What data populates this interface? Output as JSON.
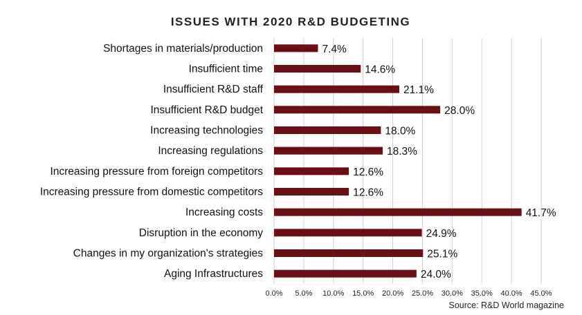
{
  "chart_data": {
    "type": "bar",
    "orientation": "horizontal",
    "title": "ISSUES WITH 2020 R&D BUDGETING",
    "categories": [
      "Shortages in materials/production",
      "Insufficient time",
      "Insufficient R&D staff",
      "Insufficient R&D budget",
      "Increasing technologies",
      "Increasing regulations",
      "Increasing pressure from foreign competitors",
      "Increasing pressure from domestic competitors",
      "Increasing costs",
      "Disruption in the economy",
      "Changes in my organization's strategies",
      "Aging Infrastructures"
    ],
    "values": [
      7.4,
      14.6,
      21.1,
      28.0,
      18.0,
      18.3,
      12.6,
      12.6,
      41.7,
      24.9,
      25.1,
      24.0
    ],
    "data_labels": [
      "7.4%",
      "14.6%",
      "21.1%",
      "28.0%",
      "18.0%",
      "18.3%",
      "12.6%",
      "12.6%",
      "41.7%",
      "24.9%",
      "25.1%",
      "24.0%"
    ],
    "xlim": [
      0,
      45
    ],
    "x_ticks": [
      0,
      5,
      10,
      15,
      20,
      25,
      30,
      35,
      40,
      45
    ],
    "x_tick_labels": [
      "0.0%",
      "5.0%",
      "10.0%",
      "15.0%",
      "20.0%",
      "25.0%",
      "30.0%",
      "35.0%",
      "40.0%",
      "45.0%"
    ],
    "grid": true,
    "bar_color": "#6b0f14",
    "source": "Source: R&D World magazine"
  }
}
